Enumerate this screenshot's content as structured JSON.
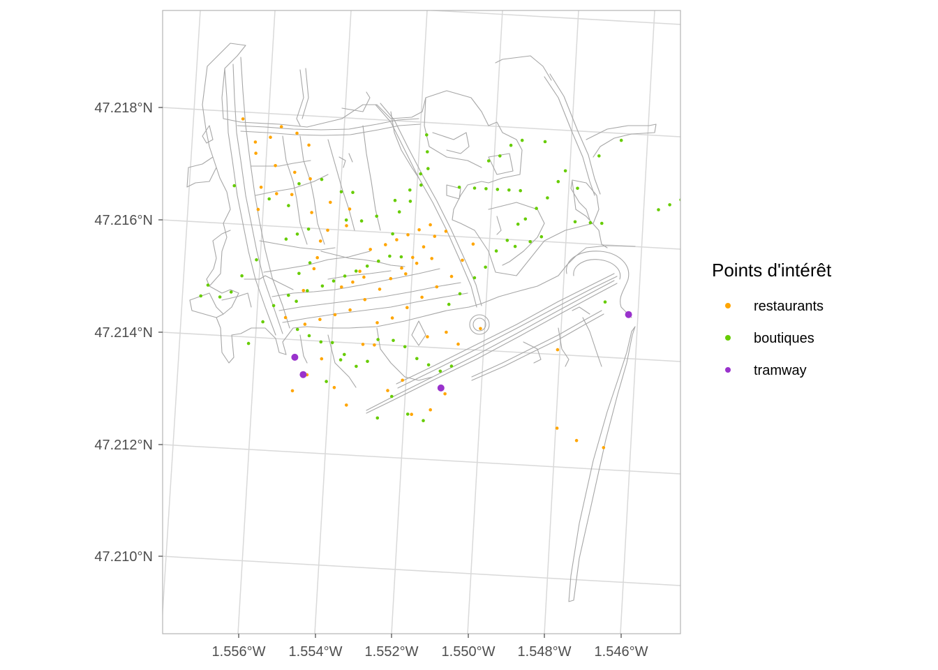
{
  "chart_data": {
    "type": "scatter",
    "x_tick_labels": [
      "1.556°W",
      "1.554°W",
      "1.552°W",
      "1.550°W",
      "1.548°W",
      "1.546°W"
    ],
    "y_tick_labels": [
      "47.218°N",
      "47.216°N",
      "47.214°N",
      "47.212°N",
      "47.210°N"
    ],
    "x_ticks": [
      -1.556,
      -1.554,
      -1.552,
      -1.55,
      -1.548,
      -1.546
    ],
    "y_ticks": [
      47.218,
      47.216,
      47.214,
      47.212,
      47.21
    ],
    "xlim": [
      -1.558,
      -1.5445
    ],
    "ylim": [
      47.2085,
      47.2197
    ],
    "grid": true,
    "legend": {
      "title": "Points d'intérêt",
      "position": "right"
    },
    "series": [
      {
        "name": "restaurants",
        "color": "#FFA500",
        "points": [
          [
            -1.5559,
            47.2178
          ],
          [
            -1.5556,
            47.2174
          ],
          [
            -1.5552,
            47.2175
          ],
          [
            -1.5549,
            47.2177
          ],
          [
            -1.5545,
            47.2176
          ],
          [
            -1.5542,
            47.2174
          ],
          [
            -1.5556,
            47.2172
          ],
          [
            -1.5551,
            47.217
          ],
          [
            -1.5546,
            47.2169
          ],
          [
            -1.5542,
            47.2168
          ],
          [
            -1.5555,
            47.2166
          ],
          [
            -1.5551,
            47.2165
          ],
          [
            -1.5547,
            47.2165
          ],
          [
            -1.5542,
            47.2162
          ],
          [
            -1.5537,
            47.2164
          ],
          [
            -1.5532,
            47.2163
          ],
          [
            -1.5556,
            47.2162
          ],
          [
            -1.554,
            47.2157
          ],
          [
            -1.5541,
            47.2154
          ],
          [
            -1.5542,
            47.2152
          ],
          [
            -1.5545,
            47.2148
          ],
          [
            -1.555,
            47.2143
          ],
          [
            -1.5545,
            47.2142
          ],
          [
            -1.5541,
            47.2143
          ],
          [
            -1.5537,
            47.2144
          ],
          [
            -1.5533,
            47.2145
          ],
          [
            -1.5529,
            47.2147
          ],
          [
            -1.5525,
            47.2149
          ],
          [
            -1.5522,
            47.2151
          ],
          [
            -1.5519,
            47.2153
          ],
          [
            -1.5516,
            47.2155
          ],
          [
            -1.5513,
            47.2157
          ],
          [
            -1.551,
            47.2159
          ],
          [
            -1.5507,
            47.216
          ],
          [
            -1.5525,
            47.2154
          ],
          [
            -1.553,
            47.2152
          ],
          [
            -1.5527,
            47.2156
          ],
          [
            -1.5523,
            47.2157
          ],
          [
            -1.552,
            47.2158
          ],
          [
            -1.5517,
            47.2159
          ],
          [
            -1.5514,
            47.216
          ],
          [
            -1.5511,
            47.2161
          ],
          [
            -1.5535,
            47.2149
          ],
          [
            -1.5532,
            47.215
          ],
          [
            -1.5529,
            47.2151
          ],
          [
            -1.5518,
            47.2152
          ],
          [
            -1.5515,
            47.2154
          ],
          [
            -1.5511,
            47.2155
          ],
          [
            -1.5526,
            47.2143
          ],
          [
            -1.5522,
            47.2144
          ],
          [
            -1.5518,
            47.2146
          ],
          [
            -1.5514,
            47.2148
          ],
          [
            -1.551,
            47.215
          ],
          [
            -1.5506,
            47.2152
          ],
          [
            -1.5503,
            47.2155
          ],
          [
            -1.55,
            47.2158
          ],
          [
            -1.553,
            47.2139
          ],
          [
            -1.5527,
            47.2139
          ],
          [
            -1.5541,
            47.2136
          ],
          [
            -1.5545,
            47.2133
          ],
          [
            -1.5549,
            47.213
          ],
          [
            -1.5538,
            47.2131
          ],
          [
            -1.5535,
            47.2128
          ],
          [
            -1.5518,
            47.2127
          ],
          [
            -1.5513,
            47.2128
          ],
          [
            -1.5509,
            47.2131
          ],
          [
            -1.5513,
            47.2141
          ],
          [
            -1.5508,
            47.2142
          ],
          [
            -1.5505,
            47.214
          ],
          [
            -1.5524,
            47.2131
          ],
          [
            -1.552,
            47.2133
          ],
          [
            -1.5479,
            47.214
          ],
          [
            -1.548,
            47.2126
          ],
          [
            -1.5475,
            47.2124
          ],
          [
            -1.5468,
            47.2123
          ],
          [
            -1.5499,
            47.2143
          ],
          [
            -1.5533,
            47.216
          ],
          [
            -1.5538,
            47.2159
          ]
        ]
      },
      {
        "name": "boutiques",
        "color": "#66CC00",
        "points": [
          [
            -1.5562,
            47.2166
          ],
          [
            -1.5553,
            47.2164
          ],
          [
            -1.5548,
            47.2163
          ],
          [
            -1.5545,
            47.2167
          ],
          [
            -1.5539,
            47.2168
          ],
          [
            -1.5549,
            47.2157
          ],
          [
            -1.5546,
            47.2158
          ],
          [
            -1.5543,
            47.2159
          ],
          [
            -1.5534,
            47.2166
          ],
          [
            -1.5531,
            47.2166
          ],
          [
            -1.5533,
            47.2161
          ],
          [
            -1.5529,
            47.2161
          ],
          [
            -1.5525,
            47.2162
          ],
          [
            -1.552,
            47.2165
          ],
          [
            -1.5516,
            47.2167
          ],
          [
            -1.5513,
            47.2168
          ],
          [
            -1.5511,
            47.2171
          ],
          [
            -1.5511,
            47.2174
          ],
          [
            -1.5511,
            47.2177
          ],
          [
            -1.5513,
            47.217
          ],
          [
            -1.5516,
            47.2165
          ],
          [
            -1.5519,
            47.2163
          ],
          [
            -1.5521,
            47.2159
          ],
          [
            -1.5519,
            47.2155
          ],
          [
            -1.5522,
            47.2155
          ],
          [
            -1.5525,
            47.2154
          ],
          [
            -1.5528,
            47.2153
          ],
          [
            -1.5531,
            47.2152
          ],
          [
            -1.5534,
            47.2151
          ],
          [
            -1.5537,
            47.215
          ],
          [
            -1.554,
            47.2149
          ],
          [
            -1.5544,
            47.2148
          ],
          [
            -1.5547,
            47.2146
          ],
          [
            -1.5549,
            47.2147
          ],
          [
            -1.5546,
            47.2151
          ],
          [
            -1.5543,
            47.2153
          ],
          [
            -1.5547,
            47.2141
          ],
          [
            -1.5544,
            47.214
          ],
          [
            -1.5541,
            47.2139
          ],
          [
            -1.5538,
            47.2139
          ],
          [
            -1.5535,
            47.2137
          ],
          [
            -1.5532,
            47.2135
          ],
          [
            -1.5529,
            47.2136
          ],
          [
            -1.5526,
            47.214
          ],
          [
            -1.5522,
            47.214
          ],
          [
            -1.5519,
            47.2139
          ],
          [
            -1.5516,
            47.2137
          ],
          [
            -1.5513,
            47.2136
          ],
          [
            -1.551,
            47.2135
          ],
          [
            -1.5507,
            47.2147
          ],
          [
            -1.5504,
            47.2149
          ],
          [
            -1.55,
            47.2152
          ],
          [
            -1.5497,
            47.2154
          ],
          [
            -1.5494,
            47.2157
          ],
          [
            -1.5491,
            47.2159
          ],
          [
            -1.5488,
            47.2162
          ],
          [
            -1.5486,
            47.2163
          ],
          [
            -1.5483,
            47.2165
          ],
          [
            -1.548,
            47.2167
          ],
          [
            -1.5477,
            47.217
          ],
          [
            -1.5475,
            47.2172
          ],
          [
            -1.5503,
            47.2168
          ],
          [
            -1.5499,
            47.2168
          ],
          [
            -1.5496,
            47.2168
          ],
          [
            -1.5493,
            47.2168
          ],
          [
            -1.549,
            47.2168
          ],
          [
            -1.5487,
            47.2168
          ],
          [
            -1.5495,
            47.2173
          ],
          [
            -1.5492,
            47.2174
          ],
          [
            -1.5489,
            47.2176
          ],
          [
            -1.5486,
            47.2177
          ],
          [
            -1.548,
            47.2177
          ],
          [
            -1.5473,
            47.2163
          ],
          [
            -1.5469,
            47.2163
          ],
          [
            -1.5466,
            47.2163
          ],
          [
            -1.5489,
            47.2158
          ],
          [
            -1.5485,
            47.2159
          ],
          [
            -1.5482,
            47.216
          ],
          [
            -1.5472,
            47.2169
          ],
          [
            -1.5466,
            47.2175
          ],
          [
            -1.546,
            47.2178
          ],
          [
            -1.5451,
            47.2166
          ],
          [
            -1.5448,
            47.2167
          ],
          [
            -1.5445,
            47.2168
          ],
          [
            -1.5557,
            47.2153
          ],
          [
            -1.5561,
            47.215
          ],
          [
            -1.5564,
            47.2147
          ],
          [
            -1.5567,
            47.2146
          ],
          [
            -1.557,
            47.2148
          ],
          [
            -1.5572,
            47.2146
          ],
          [
            -1.554,
            47.2132
          ],
          [
            -1.5536,
            47.2136
          ],
          [
            -1.5527,
            47.2126
          ],
          [
            -1.5466,
            47.2149
          ],
          [
            -1.5445,
            47.2153
          ],
          [
            -1.556,
            47.2138
          ],
          [
            -1.5556,
            47.2142
          ],
          [
            -1.5553,
            47.2145
          ],
          [
            -1.5523,
            47.213
          ],
          [
            -1.5519,
            47.2127
          ],
          [
            -1.5515,
            47.2126
          ],
          [
            -1.5507,
            47.2136
          ]
        ]
      },
      {
        "name": "tramway",
        "color": "#9932CC",
        "points": [
          [
            -1.5548,
            47.2136
          ],
          [
            -1.5546,
            47.2133
          ],
          [
            -1.551,
            47.2132
          ],
          [
            -1.546,
            47.2147
          ]
        ]
      }
    ]
  }
}
